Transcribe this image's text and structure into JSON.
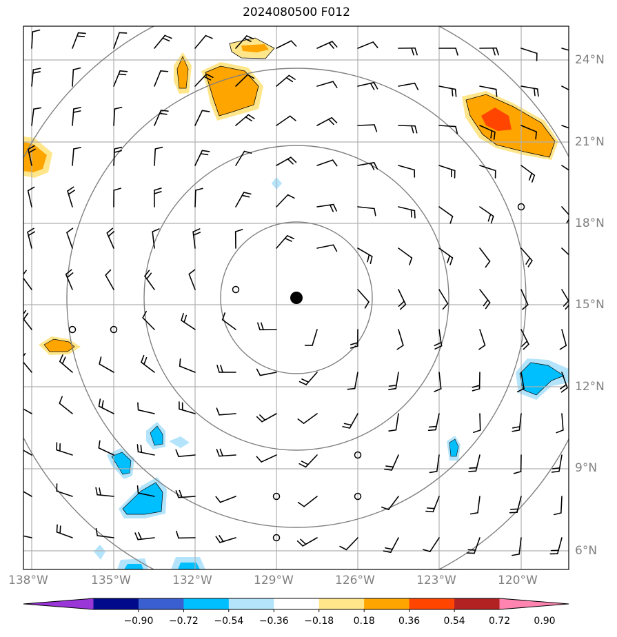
{
  "title": "2024080500 F012",
  "latitude_labels": [
    "24°N",
    "21°N",
    "18°N",
    "15°N",
    "12°N",
    "9°N",
    "6°N"
  ],
  "longitude_labels": [
    "138°W",
    "135°W",
    "132°W",
    "129°W",
    "126°W",
    "123°W",
    "120°W"
  ],
  "colorbar": {
    "tick_labels": [
      "−0.90",
      "−0.72",
      "−0.54",
      "−0.36",
      "−0.18",
      "0.18",
      "0.36",
      "0.54",
      "0.72",
      "0.90"
    ],
    "colors": [
      "#9a35d8",
      "#000a8a",
      "#3a5fd0",
      "#00bfff",
      "#b3e4fb",
      "#ffffff",
      "#ffe68a",
      "#ffa500",
      "#ff4500",
      "#b22222",
      "#ff85b0"
    ]
  },
  "storm_center": {
    "lat": 15.2,
    "lon": -128.3
  },
  "range_rings": [
    "circle-1",
    "circle-2",
    "circle-3",
    "circle-4"
  ],
  "colors": {
    "grid": "#b0b0b0",
    "ring": "#808080",
    "barb": "#000000",
    "label": "#808080"
  }
}
